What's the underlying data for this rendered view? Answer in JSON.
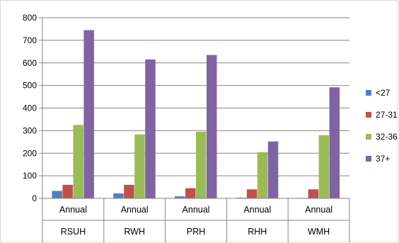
{
  "chart_data": {
    "type": "bar",
    "title": "",
    "xlabel": "",
    "ylabel": "",
    "ylim": [
      0,
      800
    ],
    "yticks": [
      0,
      100,
      200,
      300,
      400,
      500,
      600,
      700,
      800
    ],
    "ytick_labels": [
      "0",
      "100",
      "200",
      "300",
      "400",
      "500",
      "600",
      "700",
      "800"
    ],
    "grid": true,
    "legend_position": "right",
    "categories": [
      "Annual",
      "Annual",
      "Annual",
      "Annual",
      "Annual"
    ],
    "groups": [
      "RSUH",
      "RWH",
      "PRH",
      "RHH",
      "WMH"
    ],
    "series": [
      {
        "name": "<27",
        "color": "#4f81bd",
        "values": [
          33,
          22,
          9,
          3,
          2
        ]
      },
      {
        "name": "27-31",
        "color": "#c0504d",
        "values": [
          60,
          60,
          45,
          40,
          40
        ]
      },
      {
        "name": "32-36",
        "color": "#9bbb59",
        "values": [
          325,
          283,
          295,
          205,
          280
        ]
      },
      {
        "name": "37+",
        "color": "#8064a2",
        "values": [
          745,
          615,
          635,
          252,
          492
        ]
      }
    ]
  }
}
